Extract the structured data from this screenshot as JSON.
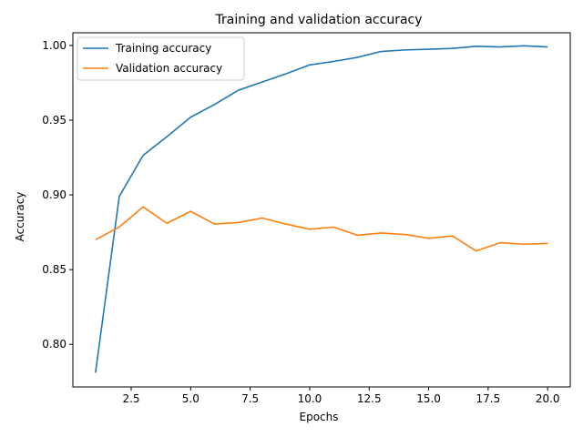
{
  "chart_data": {
    "type": "line",
    "title": "Training and validation accuracy",
    "xlabel": "Epochs",
    "ylabel": "Accuracy",
    "xlim": [
      0.05,
      20.95
    ],
    "ylim": [
      0.7715,
      1.0085
    ],
    "xticks": [
      2.5,
      5.0,
      7.5,
      10.0,
      12.5,
      15.0,
      17.5,
      20.0
    ],
    "xtick_labels": [
      "2.5",
      "5.0",
      "7.5",
      "10.0",
      "12.5",
      "15.0",
      "17.5",
      "20.0"
    ],
    "yticks": [
      0.8,
      0.85,
      0.9,
      0.95,
      1.0
    ],
    "ytick_labels": [
      "0.80",
      "0.85",
      "0.90",
      "0.95",
      "1.00"
    ],
    "grid": false,
    "legend_position": "top-left",
    "x": [
      1,
      2,
      3,
      4,
      5,
      6,
      7,
      8,
      9,
      10,
      11,
      12,
      13,
      14,
      15,
      16,
      17,
      18,
      19,
      20
    ],
    "series": [
      {
        "name": "Training accuracy",
        "color": "#1f77b4",
        "values": [
          0.781,
          0.899,
          0.9265,
          0.939,
          0.952,
          0.9605,
          0.97,
          0.9755,
          0.981,
          0.987,
          0.9893,
          0.992,
          0.996,
          0.997,
          0.9975,
          0.998,
          0.9995,
          0.999,
          0.9998,
          0.999
        ]
      },
      {
        "name": "Validation accuracy",
        "color": "#ff7f0e",
        "values": [
          0.87,
          0.8785,
          0.892,
          0.881,
          0.889,
          0.8805,
          0.8815,
          0.8845,
          0.8805,
          0.877,
          0.8785,
          0.873,
          0.8745,
          0.8735,
          0.871,
          0.8725,
          0.8625,
          0.868,
          0.867,
          0.8675
        ]
      }
    ]
  }
}
